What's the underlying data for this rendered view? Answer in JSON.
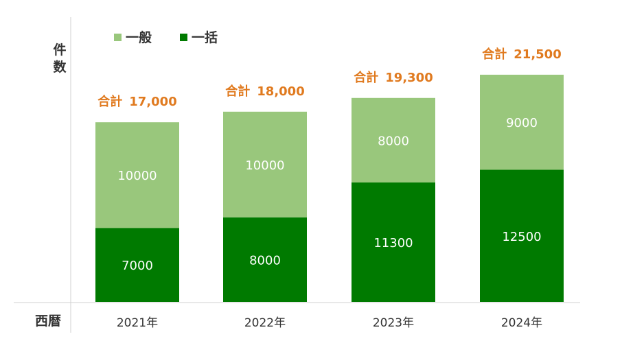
{
  "chart_data": {
    "type": "bar",
    "stacked": true,
    "categories": [
      "2021年",
      "2022年",
      "2023年",
      "2024年"
    ],
    "series": [
      {
        "name": "一括",
        "values": [
          7000,
          8000,
          11300,
          12500
        ],
        "color": "#007a00"
      },
      {
        "name": "一般",
        "values": [
          10000,
          10000,
          8000,
          9000
        ],
        "color": "#99c77c"
      }
    ],
    "totals": [
      {
        "prefix": "合計",
        "value": "17,000"
      },
      {
        "prefix": "合計",
        "value": "18,000"
      },
      {
        "prefix": "合計",
        "value": "19,300"
      },
      {
        "prefix": "合計",
        "value": "21,500"
      }
    ],
    "total_color": "#e07a1f",
    "title": "",
    "xlabel": "西暦",
    "ylabel": [
      "件",
      "数"
    ],
    "ylim": [
      0,
      25000
    ],
    "grid": false,
    "legend": {
      "position": "top-left",
      "order": [
        "一般",
        "一括"
      ]
    }
  }
}
